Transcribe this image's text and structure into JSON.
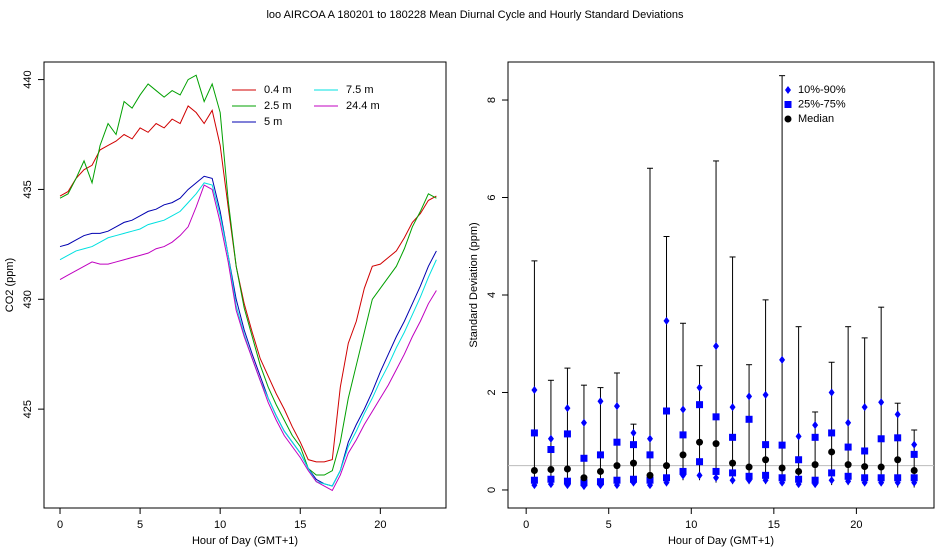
{
  "title": "loo   AIRCOA A   180201 to 180228   Mean Diurnal Cycle and Hourly Standard Deviations",
  "chart_data": [
    {
      "type": "line",
      "xlabel": "Hour of Day (GMT+1)",
      "ylabel": "CO2 (ppm)",
      "xlim": [
        -1,
        24.1
      ],
      "ylim": [
        420.5,
        440.8
      ],
      "xticks": [
        0,
        5,
        10,
        15,
        20
      ],
      "yticks": [
        425,
        430,
        435,
        440
      ],
      "x": [
        0,
        0.5,
        1,
        1.5,
        2,
        2.5,
        3,
        3.5,
        4,
        4.5,
        5,
        5.5,
        6,
        6.5,
        7,
        7.5,
        8,
        8.5,
        9,
        9.5,
        10,
        10.5,
        11,
        11.5,
        12,
        12.5,
        13,
        13.5,
        14,
        14.5,
        15,
        15.5,
        16,
        16.5,
        17,
        17.5,
        18,
        18.5,
        19,
        19.5,
        20,
        20.5,
        21,
        21.5,
        22,
        22.5,
        23,
        23.5
      ],
      "series": [
        {
          "name": "0.4 m",
          "color": "#d00000",
          "values": [
            434.7,
            434.9,
            435.5,
            435.9,
            436.1,
            436.8,
            437,
            437.2,
            437.5,
            437.3,
            437.8,
            437.6,
            438,
            437.8,
            438.2,
            438,
            438.8,
            438.5,
            438,
            438.6,
            437,
            434.2,
            431.5,
            429.8,
            428.5,
            427.3,
            426.5,
            425.7,
            425,
            424.2,
            423.5,
            422.7,
            422.6,
            422.6,
            422.7,
            426,
            428,
            429,
            430.5,
            431.5,
            431.6,
            431.9,
            432.2,
            432.8,
            433.5,
            433.9,
            434.5,
            434.7
          ]
        },
        {
          "name": "2.5 m",
          "color": "#00a000",
          "values": [
            434.6,
            434.8,
            435.5,
            436.3,
            435.3,
            437,
            438,
            437.5,
            439,
            438.7,
            439.3,
            439.8,
            439.5,
            439.2,
            439.5,
            439.3,
            440,
            440.2,
            439,
            439.8,
            438.5,
            434.5,
            431.5,
            429.6,
            428.3,
            427,
            426,
            425.2,
            424.5,
            423.8,
            423.3,
            422.3,
            422,
            422,
            422.2,
            423.5,
            425.5,
            427,
            428.5,
            430,
            430.5,
            431,
            431.5,
            432.3,
            433.3,
            434,
            434.8,
            434.6
          ]
        },
        {
          "name": "5 m",
          "color": "#0000b0",
          "values": [
            432.4,
            432.5,
            432.7,
            432.9,
            433,
            433,
            433.1,
            433.3,
            433.5,
            433.6,
            433.8,
            434,
            434.1,
            434.3,
            434.4,
            434.6,
            435,
            435.3,
            435.6,
            435.5,
            434,
            432,
            430,
            428.6,
            427.5,
            426.5,
            425.5,
            424.7,
            424,
            423.5,
            423,
            422.3,
            421.8,
            421.6,
            421.5,
            422.2,
            423.5,
            424.3,
            425,
            425.8,
            426.7,
            427.5,
            428.3,
            429,
            429.8,
            430.6,
            431.5,
            432.2
          ]
        },
        {
          "name": "7.5 m",
          "color": "#00e0e0",
          "values": [
            431.8,
            432,
            432.2,
            432.3,
            432.4,
            432.6,
            432.8,
            432.9,
            433,
            433.1,
            433.2,
            433.4,
            433.5,
            433.6,
            433.8,
            434,
            434.4,
            434.8,
            435.3,
            435.2,
            433.8,
            432,
            429.7,
            428.4,
            427.3,
            426.3,
            425.5,
            424.7,
            424,
            423.5,
            423,
            422.3,
            421.7,
            421.6,
            421.5,
            422.2,
            423.3,
            424,
            424.8,
            425.5,
            426.3,
            427,
            427.8,
            428.5,
            429.3,
            430.1,
            431,
            431.8
          ]
        },
        {
          "name": "24.4 m",
          "color": "#c000c0",
          "values": [
            430.9,
            431.1,
            431.3,
            431.5,
            431.7,
            431.6,
            431.6,
            431.7,
            431.8,
            431.9,
            432,
            432.1,
            432.3,
            432.4,
            432.6,
            432.9,
            433.3,
            434.2,
            435.2,
            435,
            433.5,
            431.7,
            429.5,
            428.3,
            427.3,
            426.3,
            425.3,
            424.5,
            423.8,
            423.3,
            422.8,
            422.2,
            421.7,
            421.5,
            421.3,
            422,
            423,
            423.6,
            424.3,
            424.9,
            425.5,
            426.1,
            426.8,
            427.5,
            428.3,
            429,
            429.8,
            430.4
          ]
        }
      ]
    },
    {
      "type": "range",
      "xlabel": "Hour of Day (GMT+1)",
      "ylabel": "Standard Deviation (ppm)",
      "xlim": [
        -1.1,
        24.7
      ],
      "ylim": [
        -0.37,
        8.78
      ],
      "xticks": [
        0,
        5,
        10,
        15,
        20
      ],
      "yticks": [
        0,
        2,
        4,
        6,
        8
      ],
      "reference_line": 0.5,
      "reference_color": "#bbbbbb",
      "x": [
        0.5,
        1.5,
        2.5,
        3.5,
        4.5,
        5.5,
        6.5,
        7.5,
        8.5,
        9.5,
        10.5,
        11.5,
        12.5,
        13.5,
        14.5,
        15.5,
        16.5,
        17.5,
        18.5,
        19.5,
        20.5,
        21.5,
        22.5,
        23.5
      ],
      "whiskers": {
        "color": "#000000",
        "low": [
          0.05,
          0.05,
          0.05,
          0.03,
          0.05,
          0.05,
          0.08,
          0.05,
          0.08,
          0.2,
          0.2,
          0.15,
          0.12,
          0.12,
          0.12,
          0.1,
          0.05,
          0.05,
          0.1,
          0.1,
          0.08,
          0.08,
          0.05,
          0.05
        ],
        "high": [
          4.7,
          2.25,
          2.5,
          2.15,
          2.1,
          2.4,
          1.35,
          6.6,
          5.2,
          3.42,
          2.55,
          6.75,
          4.78,
          2.57,
          3.9,
          8.5,
          3.35,
          1.6,
          2.62,
          3.35,
          3.12,
          3.75,
          1.78,
          1.23
        ]
      },
      "series": [
        {
          "name": "10%-90%",
          "color": "#0000ff",
          "marker": "diamond",
          "low": [
            0.1,
            0.12,
            0.1,
            0.08,
            0.1,
            0.1,
            0.15,
            0.1,
            0.15,
            0.3,
            0.3,
            0.25,
            0.2,
            0.2,
            0.2,
            0.15,
            0.12,
            0.12,
            0.2,
            0.18,
            0.15,
            0.15,
            0.15,
            0.15
          ],
          "high": [
            2.05,
            1.05,
            1.68,
            1.38,
            1.82,
            1.72,
            1.17,
            1.05,
            3.47,
            1.65,
            2.1,
            2.95,
            1.7,
            1.92,
            1.95,
            2.67,
            1.1,
            1.33,
            2,
            1.38,
            1.7,
            1.8,
            1.55,
            0.93
          ]
        },
        {
          "name": "25%-75%",
          "color": "#0000ff",
          "marker": "square",
          "low": [
            0.2,
            0.22,
            0.18,
            0.15,
            0.17,
            0.2,
            0.22,
            0.2,
            0.25,
            0.38,
            0.58,
            0.38,
            0.35,
            0.28,
            0.3,
            0.25,
            0.22,
            0.2,
            0.35,
            0.28,
            0.25,
            0.25,
            0.25,
            0.25
          ],
          "high": [
            1.17,
            0.83,
            1.15,
            0.65,
            0.72,
            0.98,
            0.93,
            0.72,
            1.62,
            1.13,
            1.75,
            1.5,
            1.08,
            1.45,
            0.93,
            0.92,
            0.62,
            1.08,
            1.17,
            0.88,
            0.8,
            1.05,
            1.07,
            0.73
          ]
        },
        {
          "name": "Median",
          "color": "#000000",
          "marker": "circle",
          "values": [
            0.4,
            0.42,
            0.43,
            0.25,
            0.38,
            0.5,
            0.55,
            0.3,
            0.5,
            0.72,
            0.98,
            0.95,
            0.55,
            0.47,
            0.62,
            0.45,
            0.38,
            0.52,
            0.78,
            0.52,
            0.48,
            0.47,
            0.62,
            0.4
          ]
        }
      ]
    }
  ]
}
